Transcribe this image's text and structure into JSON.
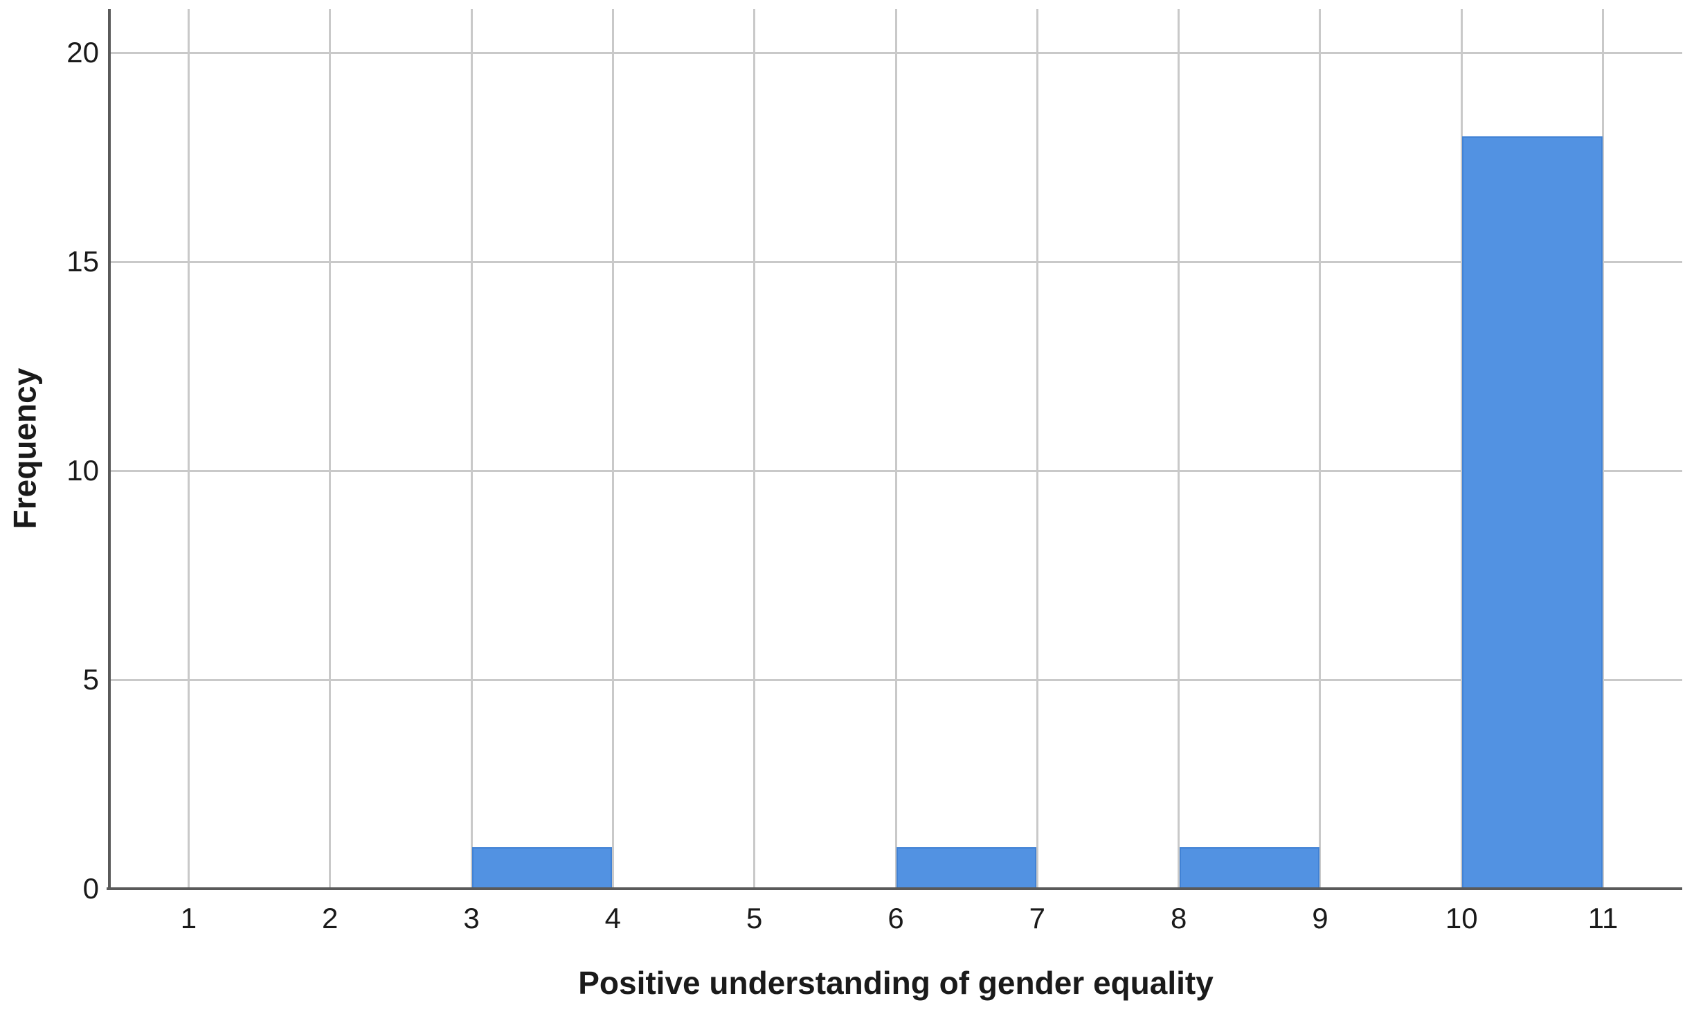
{
  "chart_data": {
    "type": "bar",
    "subtype": "histogram",
    "title": "",
    "xlabel": "Positive understanding of gender equality",
    "ylabel": "Frequency",
    "bins": [
      {
        "x_start": 1,
        "x_end": 2,
        "frequency": 0
      },
      {
        "x_start": 2,
        "x_end": 3,
        "frequency": 0
      },
      {
        "x_start": 3,
        "x_end": 4,
        "frequency": 1
      },
      {
        "x_start": 4,
        "x_end": 5,
        "frequency": 0
      },
      {
        "x_start": 5,
        "x_end": 6,
        "frequency": 0
      },
      {
        "x_start": 6,
        "x_end": 7,
        "frequency": 1
      },
      {
        "x_start": 7,
        "x_end": 8,
        "frequency": 0
      },
      {
        "x_start": 8,
        "x_end": 9,
        "frequency": 1
      },
      {
        "x_start": 9,
        "x_end": 10,
        "frequency": 0
      },
      {
        "x_start": 10,
        "x_end": 11,
        "frequency": 18
      }
    ],
    "x_ticks": [
      "1",
      "2",
      "3",
      "4",
      "5",
      "6",
      "7",
      "8",
      "9",
      "10",
      "11"
    ],
    "y_ticks": [
      "0",
      "5",
      "10",
      "15",
      "20"
    ],
    "xlim": [
      0.44,
      11.56
    ],
    "ylim": [
      0,
      21.05
    ],
    "grid": true,
    "legend": "none",
    "colors": {
      "bar_fill": "#5292E2",
      "bar_border": "#4182D5",
      "gridline": "#C9C9C9",
      "axis_line": "#5A5A5A",
      "text": "#1A1A1A",
      "background": "#FFFFFF"
    }
  }
}
